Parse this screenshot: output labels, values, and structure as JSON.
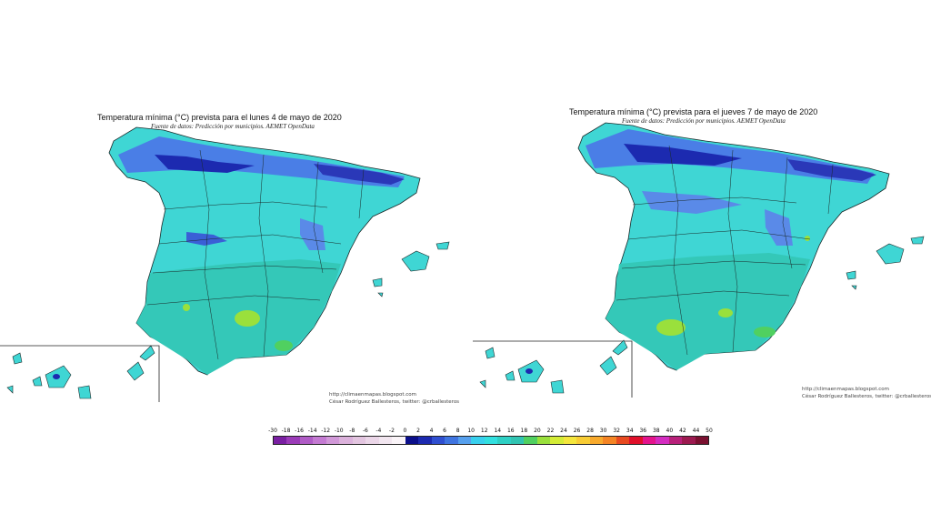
{
  "maps": [
    {
      "title": "Temperatura mínima (°C) prevista para el lunes 4 de mayo de 2020",
      "subtitle": "Fuente de datos: Predicción por municipios. AEMET OpenData",
      "credit_url": "http://climaenmapas.blogspot.com",
      "credit_author": "César Rodríguez Ballesteros, twitter: @crballesteros"
    },
    {
      "title": "Temperatura mínima (°C) prevista para el jueves 7 de mayo de 2020",
      "subtitle": "Fuente de datos: Predicción por municipios. AEMET OpenData",
      "credit_url": "http://climaenmapas.blogspot.com",
      "credit_author": "César Rodríguez Ballesteros, twitter: @crballesteros"
    }
  ],
  "legend": {
    "labels": [
      "-30",
      "-18",
      "-16",
      "-14",
      "-12",
      "-10",
      "-8",
      "-6",
      "-4",
      "-2",
      "0",
      "2",
      "4",
      "6",
      "8",
      "10",
      "12",
      "14",
      "16",
      "18",
      "20",
      "22",
      "24",
      "26",
      "28",
      "30",
      "32",
      "34",
      "36",
      "38",
      "40",
      "42",
      "44",
      "50"
    ],
    "colors": [
      "#7a1fa2",
      "#9b3bb8",
      "#b05cc6",
      "#c47ad2",
      "#d198d8",
      "#dcb2dc",
      "#e3c5e0",
      "#ebd6e8",
      "#f2e6f0",
      "#faf4f8",
      "#0b0f8a",
      "#1c2ab0",
      "#2f4fd0",
      "#3f74e0",
      "#56a0ee",
      "#38d0ee",
      "#32e0e0",
      "#2ed0c4",
      "#31c4b2",
      "#50d060",
      "#9ae03c",
      "#d4ec36",
      "#f4e63c",
      "#f8cc34",
      "#f8aa2c",
      "#f48424",
      "#e84a20",
      "#e0102a",
      "#e4148c",
      "#d42cc0",
      "#b8207a",
      "#9c1a50",
      "#7a1030"
    ]
  }
}
